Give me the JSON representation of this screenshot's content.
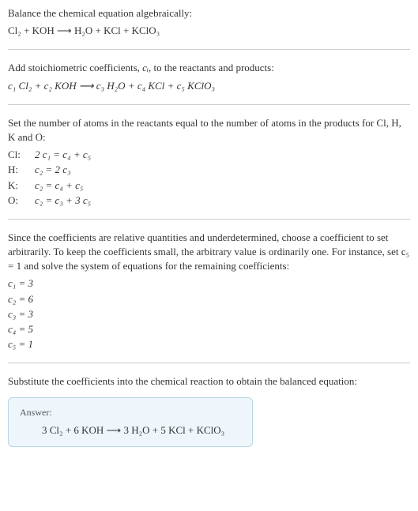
{
  "section1": {
    "intro": "Balance the chemical equation algebraically:",
    "equation": "Cl₂ + KOH ⟶ H₂O + KCl + KClO₃"
  },
  "section2": {
    "intro_a": "Add stoichiometric coefficients, ",
    "intro_var": "cᵢ",
    "intro_b": ", to the reactants and products:",
    "equation": "c₁ Cl₂ + c₂ KOH ⟶ c₃ H₂O + c₄ KCl + c₅ KClO₃"
  },
  "section3": {
    "intro": "Set the number of atoms in the reactants equal to the number of atoms in the products for Cl, H, K and O:",
    "constraints": [
      {
        "label": "Cl:",
        "eq": "2 c₁ = c₄ + c₅"
      },
      {
        "label": "H:",
        "eq": "c₂ = 2 c₃"
      },
      {
        "label": "K:",
        "eq": "c₂ = c₄ + c₅"
      },
      {
        "label": "O:",
        "eq": "c₂ = c₃ + 3 c₅"
      }
    ]
  },
  "section4": {
    "intro": "Since the coefficients are relative quantities and underdetermined, choose a coefficient to set arbitrarily. To keep the coefficients small, the arbitrary value is ordinarily one. For instance, set c₅ = 1 and solve the system of equations for the remaining coefficients:",
    "coeffs": [
      "c₁ = 3",
      "c₂ = 6",
      "c₃ = 3",
      "c₄ = 5",
      "c₅ = 1"
    ]
  },
  "section5": {
    "intro": "Substitute the coefficients into the chemical reaction to obtain the balanced equation:",
    "answer_label": "Answer:",
    "answer_equation": "3 Cl₂ + 6 KOH ⟶ 3 H₂O + 5 KCl + KClO₃"
  },
  "colors": {
    "text": "#333333",
    "divider": "#cccccc",
    "answer_bg": "#eef6fb",
    "answer_border": "#b8d4e3",
    "answer_label": "#555555"
  }
}
